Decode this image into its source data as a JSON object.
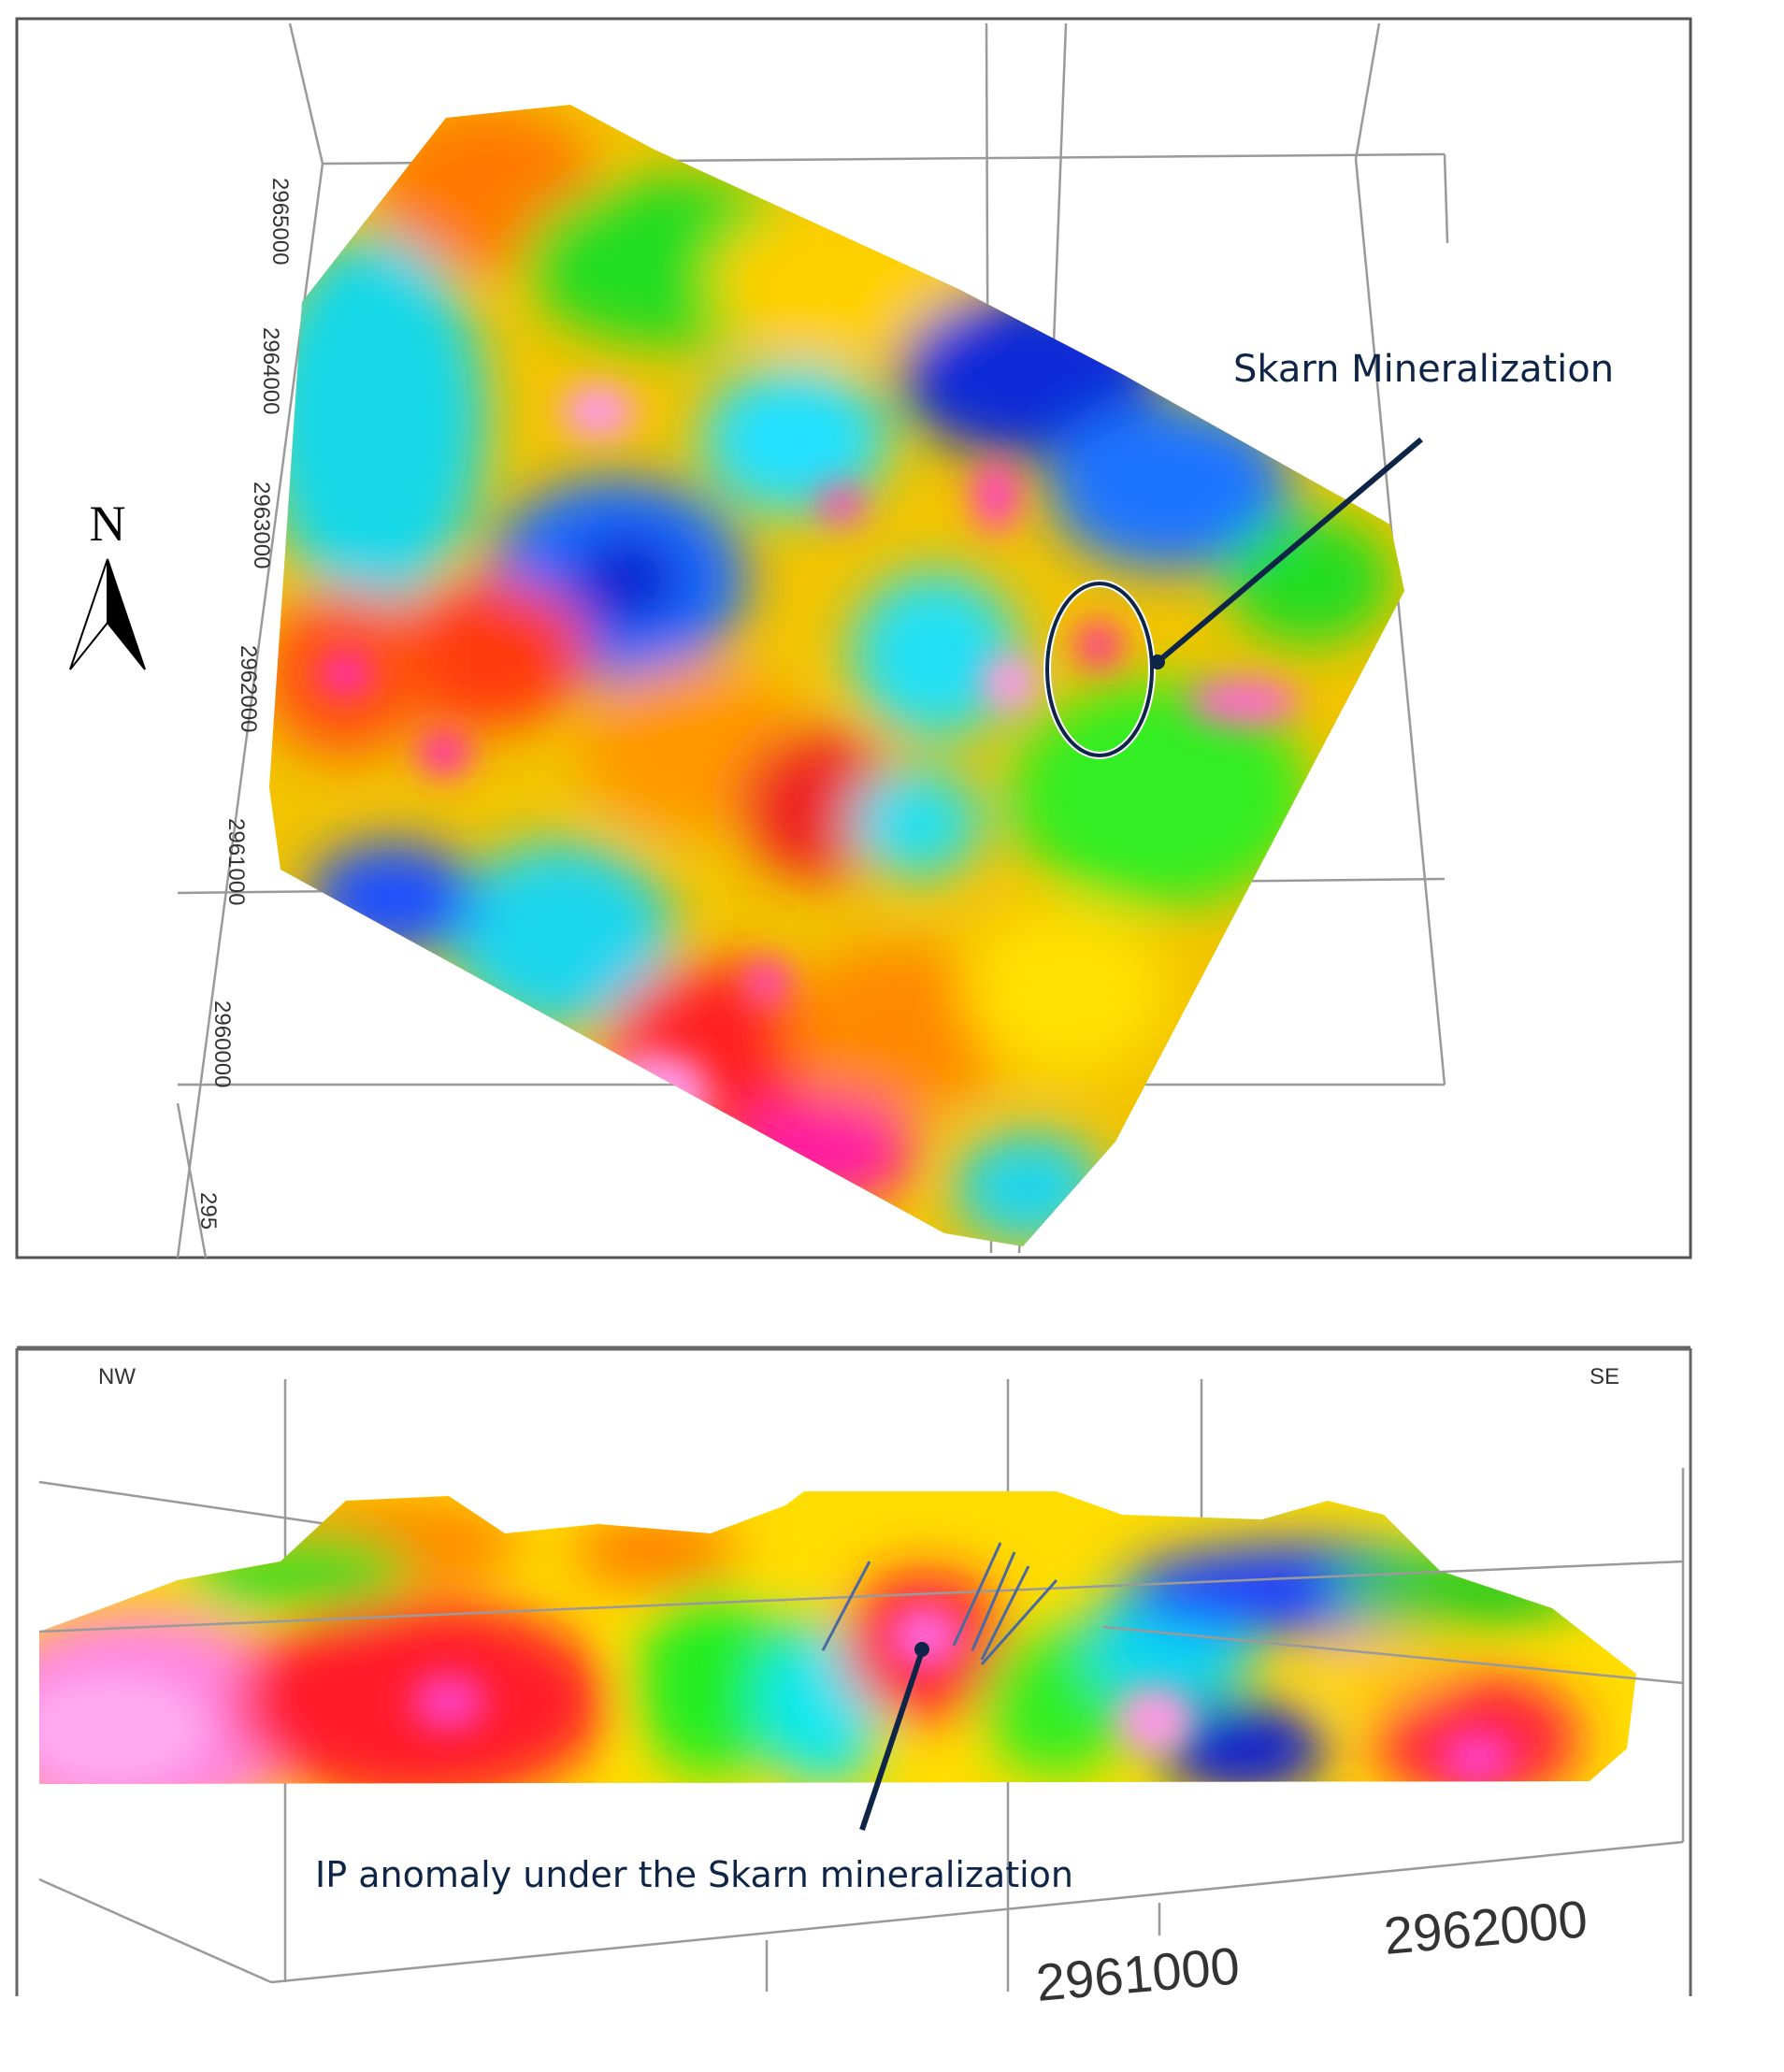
{
  "plan_view": {
    "north_label": "N",
    "northing_ticks": [
      "2965000",
      "2964000",
      "2963000",
      "2962000",
      "2961000",
      "2960000",
      "295"
    ],
    "annotation": "Skarn Mineralization",
    "icons": [
      "north-arrow-icon"
    ]
  },
  "section_view": {
    "left_direction": "NW",
    "right_direction": "SE",
    "annotation": "IP anomaly under the Skarn mineralization",
    "axis_ticks": [
      "2961000",
      "2962000"
    ]
  },
  "colors": {
    "annotation": "#0f2547",
    "grid": "#9a9a9a",
    "frame": "#666666"
  }
}
